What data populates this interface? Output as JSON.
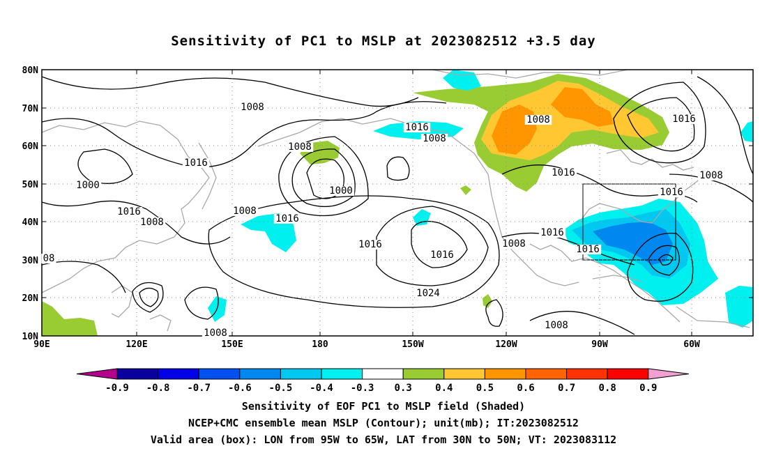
{
  "title": "Sensitivity of PC1 to MSLP at 2023082512 +3.5 day",
  "lat_labels": [
    "80N",
    "70N",
    "60N",
    "50N",
    "40N",
    "30N",
    "20N",
    "10N"
  ],
  "lon_labels": [
    "90E",
    "120E",
    "150E",
    "180",
    "150W",
    "120W",
    "90W",
    "60W"
  ],
  "contour_labels": [
    "1008",
    "1016",
    "1008",
    "1016",
    "1000",
    "1008",
    "1016",
    "1000",
    "1016",
    "1008",
    "1016",
    "1016",
    "1016",
    "1008",
    "1008",
    "1016",
    "1016",
    "1024",
    "1008",
    "1016",
    "1008",
    "1016",
    "1008",
    "1008",
    "08"
  ],
  "colorbar": {
    "labels": [
      "-0.9",
      "-0.8",
      "-0.7",
      "-0.6",
      "-0.5",
      "-0.4",
      "-0.3",
      "0.3",
      "0.4",
      "0.5",
      "0.6",
      "0.7",
      "0.8",
      "0.9"
    ],
    "colors": [
      "#0a00a0",
      "#0000e6",
      "#0050f0",
      "#0088f0",
      "#00c8f0",
      "#00f0f0",
      "#ffffff",
      "#99cc33",
      "#ffc832",
      "#ff9600",
      "#ff6400",
      "#ff3200",
      "#ff0000"
    ],
    "low_arrow_color": "#b4008c",
    "high_arrow_color": "#f0a0d2"
  },
  "footer": {
    "line1": "Sensitivity of EOF PC1 to MSLP field (Shaded)",
    "line2": "NCEP+CMC ensemble mean MSLP (Contour); unit(mb); IT:2023082512",
    "line3": "Valid area (box): LON from 95W to 65W, LAT from 30N to 50N; VT: 2023083112"
  }
}
